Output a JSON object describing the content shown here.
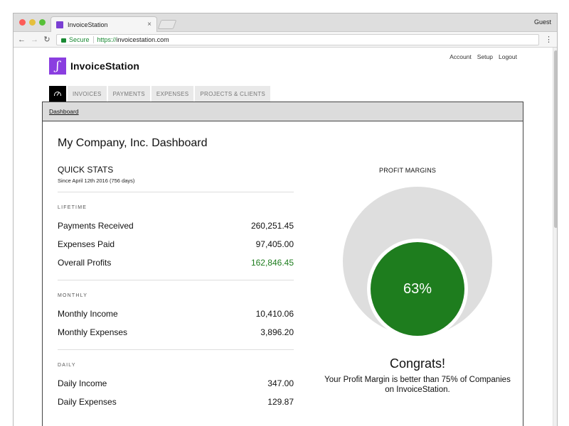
{
  "browser": {
    "tab_title": "InvoiceStation",
    "tab_close": "×",
    "profile": "Guest",
    "secure_label": "Secure",
    "url_scheme": "https://",
    "url_host": "invoicestation.com",
    "icons": [
      "back-icon",
      "forward-icon",
      "reload-icon",
      "lock-icon",
      "menu-icon"
    ]
  },
  "app": {
    "brand": "InvoiceStation",
    "logo_glyph": "ʃ",
    "brand_color": "#8a3ee0",
    "top_links": [
      "Account",
      "Setup",
      "Logout"
    ],
    "nav_tabs": [
      "INVOICES",
      "PAYMENTS",
      "EXPENSES",
      "PROJECTS & CLIENTS"
    ],
    "breadcrumb": "Dashboard",
    "page_title": "My Company, Inc. Dashboard"
  },
  "quick_stats": {
    "title": "QUICK STATS",
    "since": "Since April 12th 2016 (756 days)",
    "lifetime": {
      "label": "LIFETIME",
      "rows": [
        {
          "label": "Payments Received",
          "value": "260,251.45"
        },
        {
          "label": "Expenses Paid",
          "value": "97,405.00"
        },
        {
          "label": "Overall Profits",
          "value": "162,846.45"
        }
      ]
    },
    "monthly": {
      "label": "MONTHLY",
      "rows": [
        {
          "label": "Monthly Income",
          "value": "10,410.06"
        },
        {
          "label": "Monthly Expenses",
          "value": "3,896.20"
        }
      ]
    },
    "daily": {
      "label": "DAILY",
      "rows": [
        {
          "label": "Daily Income",
          "value": "347.00"
        },
        {
          "label": "Daily Expenses",
          "value": "129.87"
        }
      ]
    }
  },
  "profit": {
    "title": "PROFIT MARGINS",
    "percent": "63%",
    "congrats": "Congrats!",
    "message": "Your Profit Margin is better than 75% of Companies on InvoiceStation.",
    "green": "#1e7d1e"
  }
}
